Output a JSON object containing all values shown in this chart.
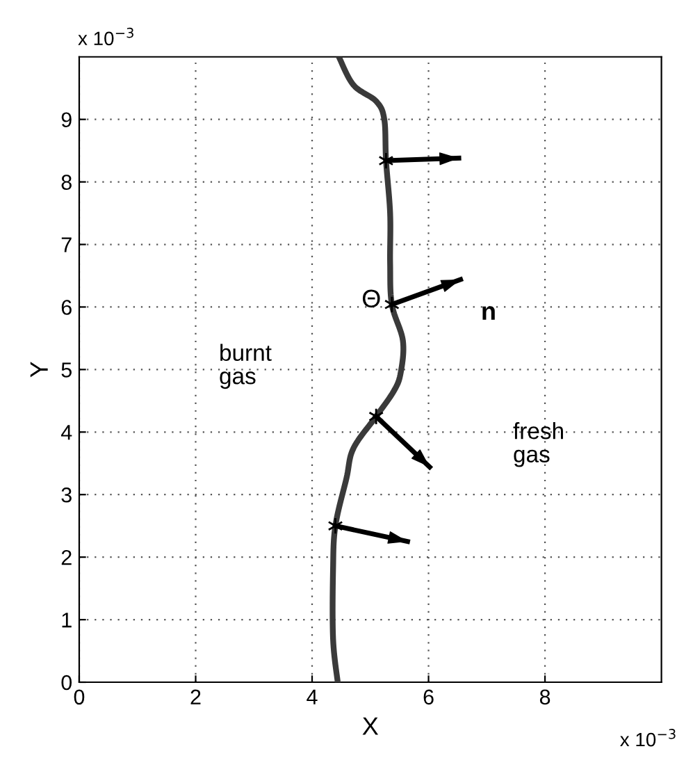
{
  "chart_data": {
    "type": "line",
    "xlabel": "X",
    "ylabel": "Y",
    "xlim": [
      0,
      10
    ],
    "ylim": [
      0,
      10
    ],
    "xticks": [
      0,
      2,
      4,
      6,
      8
    ],
    "yticks": [
      0,
      1,
      2,
      3,
      4,
      5,
      6,
      7,
      8,
      9
    ],
    "grid": true,
    "line_style": "solid",
    "series": [
      {
        "color": "#3a3a3a",
        "x": [
          4.46,
          4.71,
          5.1,
          5.24,
          5.27,
          5.34,
          5.34,
          5.37,
          5.56,
          5.52,
          5.4,
          5.1,
          4.71,
          4.59,
          4.4,
          4.36,
          4.36,
          4.44
        ],
        "values": [
          10,
          9.55,
          9.29,
          9.0,
          8.34,
          7.5,
          6.7,
          6.04,
          5.46,
          4.94,
          4.65,
          4.25,
          3.74,
          3.26,
          2.5,
          1.8,
          0.7,
          0
        ]
      },
      {
        "color": "#000000",
        "marker": "cross",
        "x": [
          5.27,
          6.52
        ],
        "values": [
          8.34,
          8.38
        ]
      },
      {
        "color": "#000000",
        "marker": "cross",
        "x": [
          5.37,
          6.55
        ],
        "values": [
          6.04,
          6.44
        ]
      },
      {
        "color": "#000000",
        "marker": "cross",
        "x": [
          5.1,
          6.02
        ],
        "values": [
          4.25,
          3.44
        ]
      },
      {
        "color": "#000000",
        "marker": "cross",
        "x": [
          4.4,
          5.64
        ],
        "values": [
          2.5,
          2.25
        ]
      }
    ],
    "annotations": [
      "burnt\ngas",
      "fresh\ngas",
      "Θ",
      "n",
      "x 10$^{−3}$",
      "x 10$^{−3}$"
    ]
  }
}
